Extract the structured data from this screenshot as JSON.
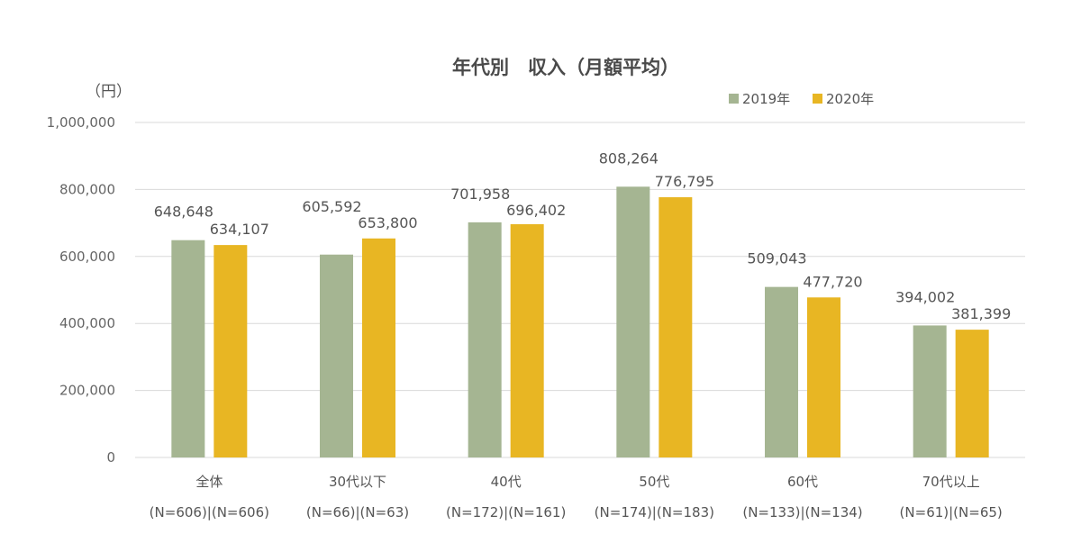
{
  "chart_data": {
    "type": "bar",
    "title": "年代別　収入（月額平均）",
    "unit_label": "（円）",
    "categories": [
      "全体",
      "30代以下",
      "40代",
      "50代",
      "60代",
      "70代以上"
    ],
    "category_sublabels": [
      "(N=606)|(N=606)",
      "(N=66)|(N=63)",
      "(N=172)|(N=161)",
      "(N=174)|(N=183)",
      "(N=133)|(N=134)",
      "(N=61)|(N=65)"
    ],
    "series": [
      {
        "name": "2019年",
        "color": "#a5b592",
        "values": [
          648648,
          605592,
          701958,
          808264,
          509043,
          394002
        ],
        "labels": [
          "648,648",
          "605,592",
          "701,958",
          "808,264",
          "509,043",
          "394,002"
        ]
      },
      {
        "name": "2020年",
        "color": "#e8b623",
        "values": [
          634107,
          653800,
          696402,
          776795,
          477720,
          381399
        ],
        "labels": [
          "634,107",
          "653,800",
          "696,402",
          "776,795",
          "477,720",
          "381,399"
        ]
      }
    ],
    "ylim": [
      0,
      1000000
    ],
    "yticks": [
      0,
      200000,
      400000,
      600000,
      800000,
      1000000
    ],
    "ytick_labels": [
      "0",
      "200,000",
      "400,000",
      "600,000",
      "800,000",
      "1,000,000"
    ],
    "grid": true,
    "legend_position": "top-right"
  }
}
